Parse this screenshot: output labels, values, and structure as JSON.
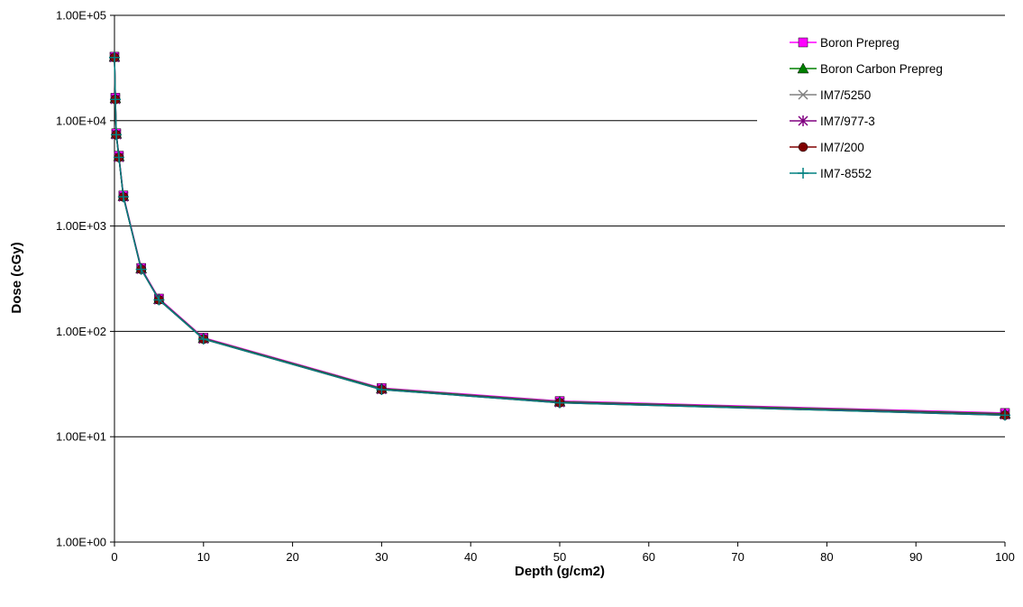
{
  "chart_data": {
    "type": "line",
    "title": "",
    "xlabel": "Depth (g/cm2)",
    "ylabel": "Dose (cGy)",
    "x_scale": "linear",
    "y_scale": "log",
    "xlim": [
      0,
      100
    ],
    "ylim": [
      1,
      100000
    ],
    "x_ticks": [
      "0",
      "10",
      "20",
      "30",
      "40",
      "50",
      "60",
      "70",
      "80",
      "90",
      "100"
    ],
    "y_ticks": [
      "1.00E+00",
      "1.00E+01",
      "1.00E+02",
      "1.00E+03",
      "1.00E+04",
      "1.00E+05"
    ],
    "grid": "horizontal major gridlines",
    "legend_position": "top-right",
    "x": [
      0,
      0.1,
      0.2,
      0.5,
      1,
      3,
      5,
      10,
      30,
      50,
      100
    ],
    "series": [
      {
        "name": "Boron Prepreg",
        "color": "#ff00ff",
        "marker": "square",
        "values": [
          40500,
          16500,
          7600,
          4650,
          1950,
          400,
          205,
          87,
          29,
          21.8,
          16.8
        ]
      },
      {
        "name": "Boron Carbon Prepreg",
        "color": "#008000",
        "marker": "triangle",
        "values": [
          40300,
          16300,
          7500,
          4580,
          1920,
          395,
          202,
          86,
          28.6,
          21.5,
          16.5
        ]
      },
      {
        "name": "IM7/5250",
        "color": "#808080",
        "marker": "x",
        "values": [
          40000,
          16000,
          7400,
          4500,
          1900,
          390,
          200,
          85,
          28.2,
          21.2,
          16.2
        ]
      },
      {
        "name": "IM7/977-3",
        "color": "#800080",
        "marker": "asterisk",
        "values": [
          40000,
          16000,
          7400,
          4500,
          1900,
          390,
          200,
          85,
          28.2,
          21.2,
          16.2
        ]
      },
      {
        "name": "IM7/200",
        "color": "#800000",
        "marker": "circle",
        "values": [
          39800,
          15900,
          7350,
          4480,
          1890,
          388,
          199,
          84.5,
          28,
          21,
          16
        ]
      },
      {
        "name": "IM7-8552",
        "color": "#008080",
        "marker": "plus",
        "values": [
          39800,
          15900,
          7350,
          4480,
          1890,
          388,
          199,
          84.5,
          28,
          21,
          16
        ]
      }
    ]
  }
}
